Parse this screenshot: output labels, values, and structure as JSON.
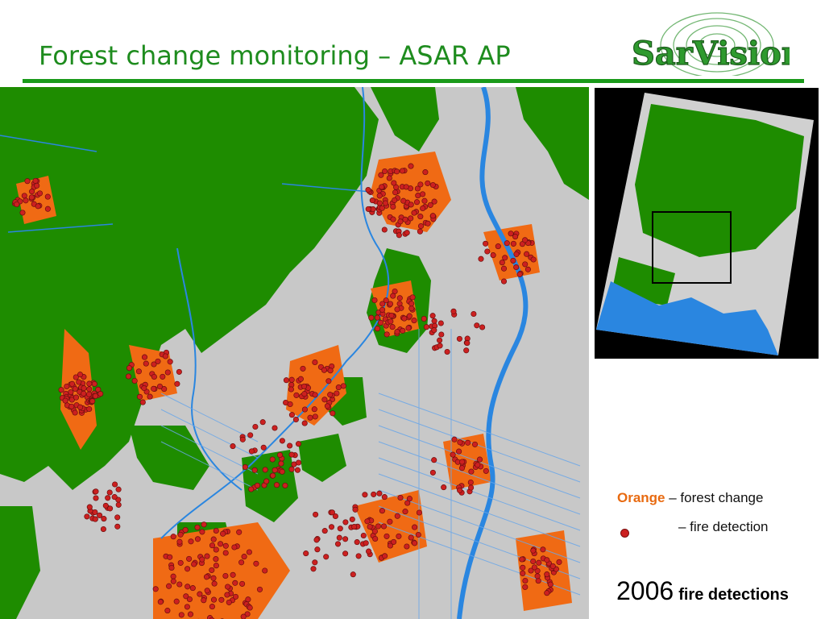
{
  "header": {
    "title": "Forest change monitoring – ASAR AP",
    "logo_text": "SarVision"
  },
  "legend": {
    "orange_word": "Orange",
    "orange_rest": " – forest change",
    "fire_text": "– fire detection"
  },
  "footer": {
    "year": "2006",
    "year_label": "fire detections"
  },
  "colors": {
    "forest": "#1e8c00",
    "non_forest": "#c8c8c8",
    "forest_change": "#f06a14",
    "fire": "#cc2020",
    "water": "#2a86e0",
    "title_green": "#1e8c1e",
    "icons": [
      "fire-detection-dot"
    ]
  }
}
